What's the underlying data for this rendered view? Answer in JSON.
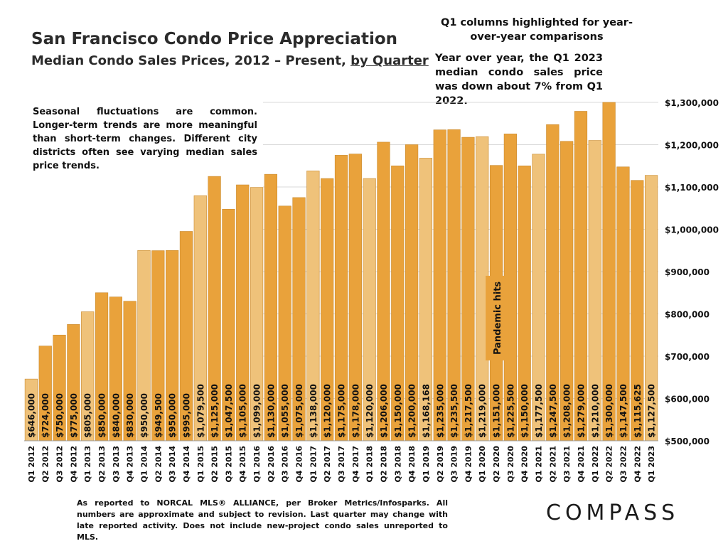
{
  "header": {
    "title": "San Francisco Condo Price Appreciation",
    "subtitle_main": "Median Condo Sales Prices, 2012 – Present, ",
    "subtitle_link": "by Quarter"
  },
  "notes": {
    "q1_highlight": "Q1 columns highlighted for year-over-year comparisons",
    "yoy": "Year over year, the Q1 2023 median condo sales price was down about 7% from Q1 2022.",
    "seasonal": "Seasonal fluctuations are common. Longer-term trends are more meaningful than short-term changes. Different city districts often see varying median sales price trends.",
    "pandemic": "Pandemic hits"
  },
  "footnote": "As reported to NORCAL MLS® ALLIANCE, per Broker Metrics/Infosparks. All numbers are approximate and subject to revision. Last quarter may change with late reported activity. Does not include new-project condo sales unreported to MLS.",
  "logo": "COMPASS",
  "colors": {
    "bar": "#E9A23B",
    "bar_q1": "#EFC27A",
    "gridline": "#d9d9d9",
    "annotation": "#E9A23B"
  },
  "chart_data": {
    "type": "bar",
    "title": "San Francisco Condo Price Appreciation",
    "subtitle": "Median Condo Sales Prices, 2012 – Present, by Quarter",
    "xlabel": "",
    "ylabel": "",
    "ylim": [
      500000,
      1300000
    ],
    "y_ticks": [
      500000,
      600000,
      700000,
      800000,
      900000,
      1000000,
      1100000,
      1200000,
      1300000
    ],
    "y_tick_labels": [
      "$500,000",
      "$600,000",
      "$700,000",
      "$800,000",
      "$900,000",
      "$1,000,000",
      "$1,100,000",
      "$1,200,000",
      "$1,300,000"
    ],
    "y_axis_position": "right",
    "grid": true,
    "categories": [
      "Q1 2012",
      "Q2 2012",
      "Q3 2012",
      "Q4 2012",
      "Q1 2013",
      "Q2 2013",
      "Q3 2013",
      "Q4 2013",
      "Q1 2014",
      "Q2 2014",
      "Q3 2014",
      "Q4 2014",
      "Q1 2015",
      "Q2 2015",
      "Q3 2015",
      "Q4 2015",
      "Q1 2016",
      "Q2 2016",
      "Q3 2016",
      "Q4 2016",
      "Q1 2017",
      "Q2 2017",
      "Q3 2017",
      "Q4 2017",
      "Q1 2018",
      "Q2 2018",
      "Q3 2018",
      "Q4 2018",
      "Q1 2019",
      "Q2 2019",
      "Q3 2019",
      "Q4 2019",
      "Q1 2020",
      "Q2 2020",
      "Q3 2020",
      "Q4 2020",
      "Q1 2021",
      "Q2 2021",
      "Q3 2021",
      "Q4 2021",
      "Q1 2022",
      "Q2 2022",
      "Q3 2022",
      "Q4 2022",
      "Q1 2023"
    ],
    "values": [
      646000,
      724000,
      750000,
      775000,
      805000,
      850000,
      840000,
      830000,
      950000,
      949500,
      950000,
      995000,
      1079500,
      1125000,
      1047500,
      1105000,
      1099000,
      1130000,
      1055000,
      1075000,
      1138000,
      1120000,
      1175000,
      1178000,
      1120000,
      1206000,
      1150000,
      1200000,
      1168168,
      1235000,
      1235500,
      1217500,
      1219000,
      1151000,
      1225500,
      1150000,
      1177500,
      1247500,
      1208000,
      1279000,
      1210000,
      1300000,
      1147500,
      1115625,
      1127500
    ],
    "value_labels": [
      "$646,000",
      "$724,000",
      "$750,000",
      "$775,000",
      "$805,000",
      "$850,000",
      "$840,000",
      "$830,000",
      "$950,000",
      "$949,500",
      "$950,000",
      "$995,000",
      "$1,079,500",
      "$1,125,000",
      "$1,047,500",
      "$1,105,000",
      "$1,099,000",
      "$1,130,000",
      "$1,055,000",
      "$1,075,000",
      "$1,138,000",
      "$1,120,000",
      "$1,175,000",
      "$1,178,000",
      "$1,120,000",
      "$1,206,000",
      "$1,150,000",
      "$1,200,000",
      "$1,168,168",
      "$1,235,000",
      "$1,235,500",
      "$1,217,500",
      "$1,219,000",
      "$1,151,000",
      "$1,225,500",
      "$1,150,000",
      "$1,177,500",
      "$1,247,500",
      "$1,208,000",
      "$1,279,000",
      "$1,210,000",
      "$1,300,000",
      "$1,147,500",
      "$1,115,625",
      "$1,127,500"
    ],
    "annotations": [
      {
        "text": "Pandemic hits",
        "category": "Q2 2020",
        "y_from": 690000,
        "y_to": 890000
      }
    ]
  }
}
